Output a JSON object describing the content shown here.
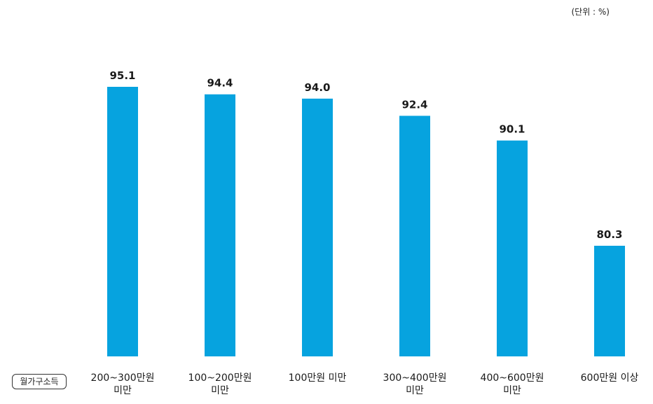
{
  "unit_label": "(단위 : %)",
  "axis_title": "월가구소득",
  "chart_data": {
    "type": "bar",
    "categories": [
      [
        "200~300만원",
        "미만"
      ],
      [
        "100~200만원",
        "미만"
      ],
      [
        "100만원 미만"
      ],
      [
        "300~400만원",
        "미만"
      ],
      [
        "400~600만원",
        "미만"
      ],
      [
        "600만원 이상"
      ]
    ],
    "values": [
      95.1,
      94.4,
      94.0,
      92.4,
      90.1,
      80.3
    ],
    "value_labels": [
      "95.1",
      "94.4",
      "94.0",
      "92.4",
      "90.1",
      "80.3"
    ],
    "bar_color": "#06a3df",
    "ylim": [
      0,
      100
    ]
  }
}
